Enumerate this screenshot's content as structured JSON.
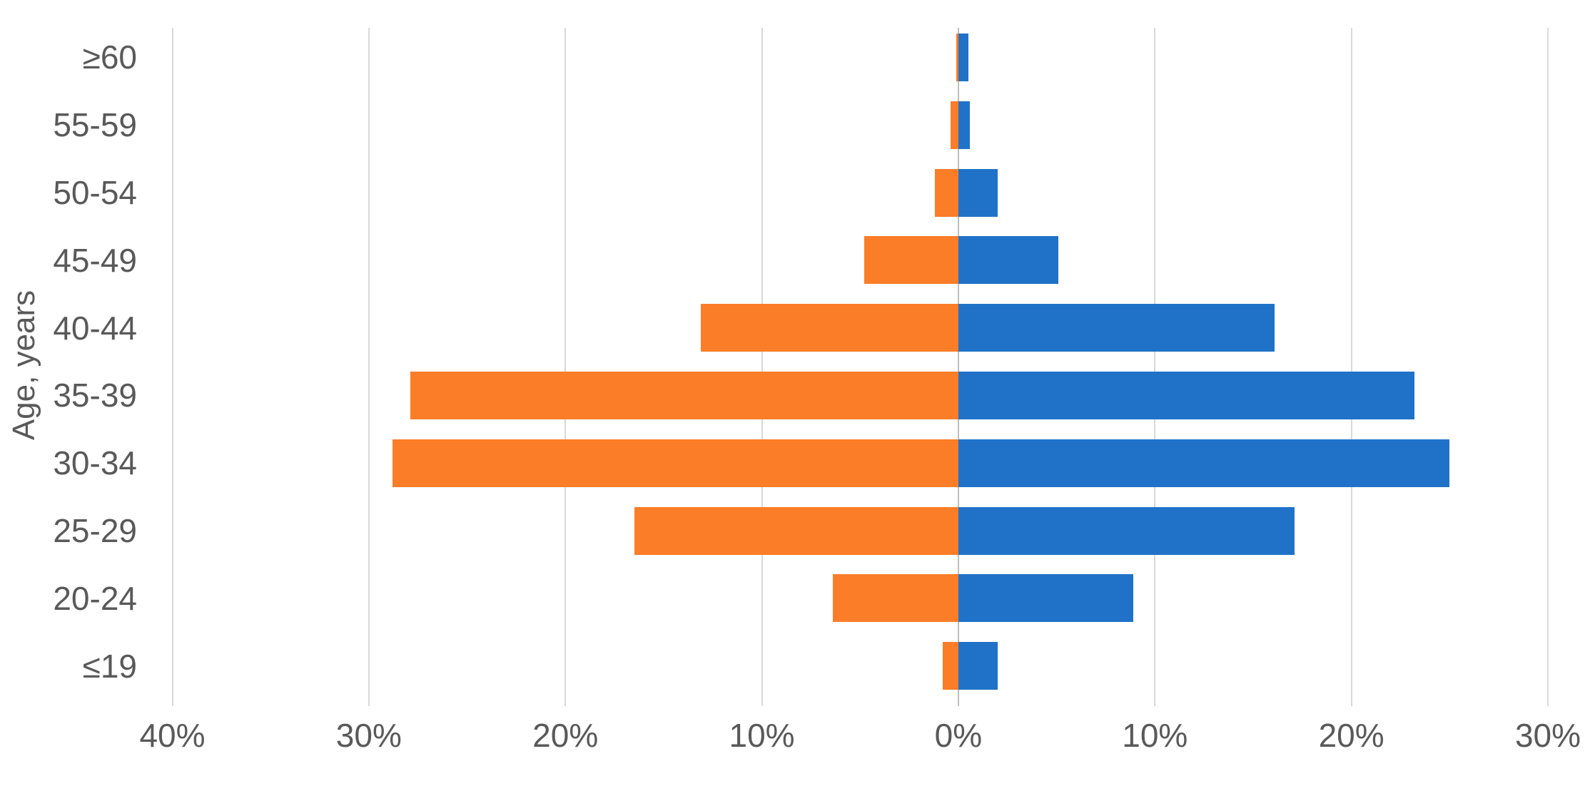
{
  "chart_data": {
    "type": "bar",
    "subtype": "population-pyramid-horizontal",
    "title": "",
    "xlabel": "",
    "ylabel": "Age, years",
    "categories": [
      "≥60",
      "55-59",
      "50-54",
      "45-49",
      "40-44",
      "35-39",
      "30-34",
      "25-29",
      "20-24",
      "≤19"
    ],
    "series": [
      {
        "name": "left-orange-series",
        "direction": "left",
        "color": "#fb7d28",
        "unit": "%",
        "values": [
          0.1,
          0.4,
          1.2,
          4.8,
          13.1,
          27.9,
          28.8,
          16.5,
          6.4,
          0.8
        ]
      },
      {
        "name": "right-blue-series",
        "direction": "right",
        "color": "#1f72c8",
        "unit": "%",
        "values": [
          0.5,
          0.6,
          2.0,
          5.1,
          16.1,
          23.2,
          25.0,
          17.1,
          8.9,
          2.0
        ]
      }
    ],
    "x_axis": {
      "tick_values": [
        -40,
        -30,
        -20,
        -10,
        0,
        10,
        20,
        30
      ],
      "tick_labels": [
        "40%",
        "30%",
        "20%",
        "10%",
        "0%",
        "10%",
        "20%",
        "30%"
      ],
      "range": [
        -40,
        30
      ],
      "unit": "%"
    },
    "grid": "vertical-gridlines-on",
    "legend": "none",
    "colors": {
      "gridline": "#d9d9d9",
      "zero_axis_line": "#bfbfbf",
      "text": "#595959",
      "background": "#ffffff"
    }
  }
}
